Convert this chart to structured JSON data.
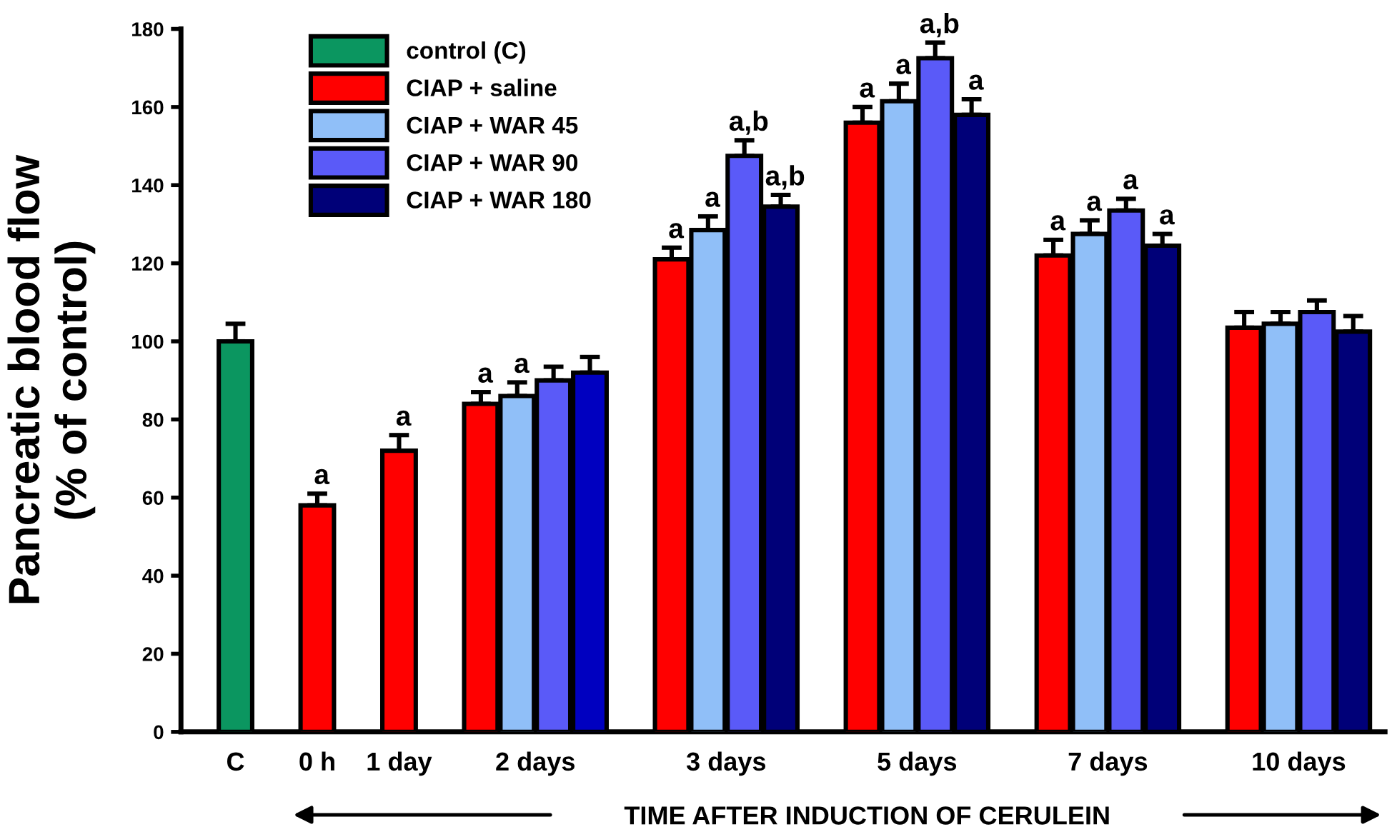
{
  "chart_data": {
    "type": "bar",
    "categories": [
      "C",
      "0 h",
      "1 day",
      "2 days",
      "3 days",
      "5 days",
      "7 days",
      "10 days"
    ],
    "xlabel": "TIME AFTER INDUCTION OF CERULEIN",
    "ylabel": "Pancreatic blood flow\n(% of control)",
    "ylim": [
      0,
      180
    ],
    "yticks": [
      0,
      20,
      40,
      60,
      80,
      100,
      120,
      140,
      160,
      180
    ],
    "legend": "top left",
    "grid": false,
    "series": [
      {
        "name": "control (C)",
        "color": "#0b9660",
        "values": [
          100,
          null,
          null,
          null,
          null,
          null,
          null,
          null
        ],
        "errors": [
          4.5,
          null,
          null,
          null,
          null,
          null,
          null,
          null
        ]
      },
      {
        "name": "CIAP + saline",
        "color": "#ff0000",
        "values": [
          null,
          58,
          72,
          84,
          121,
          156,
          122,
          103.5
        ],
        "errors": [
          null,
          3,
          4,
          3,
          3,
          4,
          4,
          4
        ],
        "value_labels": [
          null,
          "a",
          "a",
          "a",
          "a",
          "a",
          "a",
          null
        ]
      },
      {
        "name": "CIAP + WAR 45",
        "color": "#90bff8",
        "values": [
          null,
          null,
          null,
          86,
          128.5,
          161.5,
          127.5,
          104.5
        ],
        "errors": [
          null,
          null,
          null,
          3.5,
          3.5,
          4.5,
          3.5,
          3
        ],
        "value_labels": [
          null,
          null,
          null,
          "a",
          "a",
          "a",
          "a",
          null
        ]
      },
      {
        "name": "CIAP + WAR 90",
        "color": "#5a5af8",
        "values": [
          null,
          null,
          null,
          90,
          147.5,
          172.5,
          133.5,
          107.5
        ],
        "errors": [
          null,
          null,
          null,
          3.5,
          4,
          4,
          3,
          3
        ],
        "value_labels": [
          null,
          null,
          null,
          null,
          "a,b",
          "a,b",
          "a",
          null
        ]
      },
      {
        "name": "CIAP + WAR 180",
        "color": "#000078",
        "colors": [
          null,
          null,
          null,
          "#0000c0",
          "#000078",
          "#000078",
          "#000078",
          "#000078"
        ],
        "values": [
          null,
          null,
          null,
          92,
          134.5,
          158,
          124.5,
          102.5
        ],
        "errors": [
          null,
          null,
          null,
          4,
          3,
          4,
          3,
          4
        ],
        "value_labels": [
          null,
          null,
          null,
          null,
          "a,b",
          "a",
          "a",
          null
        ]
      }
    ]
  }
}
